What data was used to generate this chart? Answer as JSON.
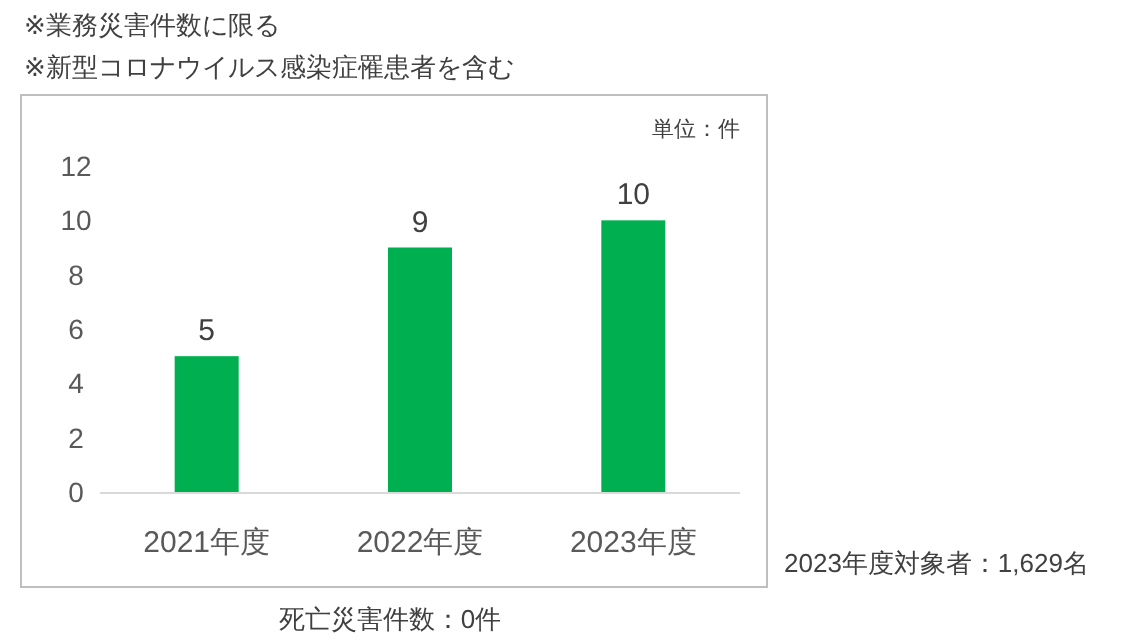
{
  "chart_data": {
    "type": "bar",
    "categories": [
      "2021年度",
      "2022年度",
      "2023年度"
    ],
    "values": [
      5,
      9,
      10
    ],
    "color": "#00b050",
    "ylim": [
      0,
      12
    ],
    "yticks": [
      0,
      2,
      4,
      6,
      8,
      10,
      12
    ],
    "data_labels": true,
    "annotations": [
      "※業務災害件数に限る",
      "※新型コロナウイルス感染症罹患者を含む",
      "単位：件",
      "死亡災害件数：0件",
      "2023年度対象者：1,629名"
    ]
  }
}
